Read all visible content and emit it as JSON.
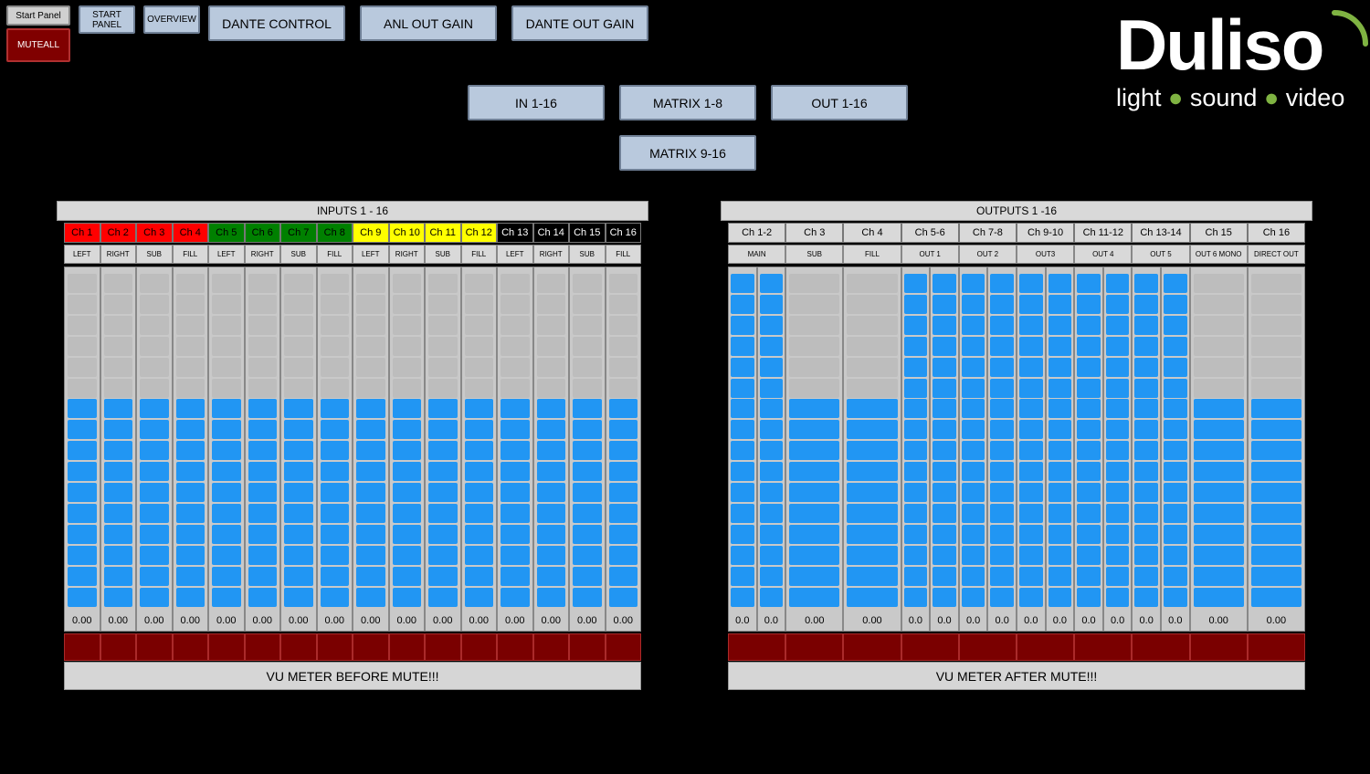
{
  "top": {
    "start_panel_small": "Start Panel",
    "mute_all": "MUTEALL",
    "start_panel": "START PANEL",
    "overview": "OVERVIEW",
    "dante_control": "DANTE CONTROL",
    "anl_out_gain": "ANL OUT GAIN",
    "dante_out_gain": "DANTE OUT GAIN"
  },
  "nav": {
    "in": "IN 1-16",
    "matrix_1_8": "MATRIX 1-8",
    "out": "OUT 1-16",
    "matrix_9_16": "MATRIX 9-16"
  },
  "logo": {
    "word": "Duliso",
    "tag_1": "light",
    "tag_2": "sound",
    "tag_3": "video",
    "accent_color": "#7fb342"
  },
  "colors": {
    "meter_on": "#2196f3",
    "meter_off": "#bdbdbd",
    "mute_red": "#7a0000",
    "button_blue": "#b9c9dd"
  },
  "inputs": {
    "title": "INPUTS 1 - 16",
    "footer": "VU METER BEFORE MUTE!!!",
    "channels": [
      {
        "label": "Ch 1",
        "sub": "LEFT",
        "value": "0.00",
        "bg": "#ff0000",
        "fg": "#000",
        "level": 10
      },
      {
        "label": "Ch 2",
        "sub": "RIGHT",
        "value": "0.00",
        "bg": "#ff0000",
        "fg": "#000",
        "level": 10
      },
      {
        "label": "Ch 3",
        "sub": "SUB",
        "value": "0.00",
        "bg": "#ff0000",
        "fg": "#000",
        "level": 10
      },
      {
        "label": "Ch 4",
        "sub": "FILL",
        "value": "0.00",
        "bg": "#ff0000",
        "fg": "#000",
        "level": 10
      },
      {
        "label": "Ch 5",
        "sub": "LEFT",
        "value": "0.00",
        "bg": "#008000",
        "fg": "#000",
        "level": 10
      },
      {
        "label": "Ch 6",
        "sub": "RIGHT",
        "value": "0.00",
        "bg": "#008000",
        "fg": "#000",
        "level": 10
      },
      {
        "label": "Ch 7",
        "sub": "SUB",
        "value": "0.00",
        "bg": "#008000",
        "fg": "#000",
        "level": 10
      },
      {
        "label": "Ch 8",
        "sub": "FILL",
        "value": "0.00",
        "bg": "#008000",
        "fg": "#000",
        "level": 10
      },
      {
        "label": "Ch 9",
        "sub": "LEFT",
        "value": "0.00",
        "bg": "#ffff00",
        "fg": "#000",
        "level": 10
      },
      {
        "label": "Ch 10",
        "sub": "RIGHT",
        "value": "0.00",
        "bg": "#ffff00",
        "fg": "#000",
        "level": 10
      },
      {
        "label": "Ch 11",
        "sub": "SUB",
        "value": "0.00",
        "bg": "#ffff00",
        "fg": "#000",
        "level": 10
      },
      {
        "label": "Ch 12",
        "sub": "FILL",
        "value": "0.00",
        "bg": "#ffff00",
        "fg": "#000",
        "level": 10
      },
      {
        "label": "Ch 13",
        "sub": "LEFT",
        "value": "0.00",
        "bg": "#000000",
        "fg": "#fff",
        "level": 10
      },
      {
        "label": "Ch 14",
        "sub": "RIGHT",
        "value": "0.00",
        "bg": "#000000",
        "fg": "#fff",
        "level": 10
      },
      {
        "label": "Ch 15",
        "sub": "SUB",
        "value": "0.00",
        "bg": "#000000",
        "fg": "#fff",
        "level": 10
      },
      {
        "label": "Ch 16",
        "sub": "FILL",
        "value": "0.00",
        "bg": "#000000",
        "fg": "#fff",
        "level": 10
      }
    ]
  },
  "outputs": {
    "title": "OUTPUTS 1 -16",
    "footer": "VU METER AFTER MUTE!!!",
    "groups": [
      {
        "label": "Ch 1-2",
        "sub": "MAIN",
        "stereo": true,
        "values": [
          "0.0",
          "0.0"
        ],
        "level": 16
      },
      {
        "label": "Ch 3",
        "sub": "SUB",
        "stereo": false,
        "values": [
          "0.00"
        ],
        "level": 10
      },
      {
        "label": "Ch 4",
        "sub": "FILL",
        "stereo": false,
        "values": [
          "0.00"
        ],
        "level": 10
      },
      {
        "label": "Ch 5-6",
        "sub": "OUT 1",
        "stereo": true,
        "values": [
          "0.0",
          "0.0"
        ],
        "level": 16
      },
      {
        "label": "Ch 7-8",
        "sub": "OUT 2",
        "stereo": true,
        "values": [
          "0.0",
          "0.0"
        ],
        "level": 16
      },
      {
        "label": "Ch 9-10",
        "sub": "OUT3",
        "stereo": true,
        "values": [
          "0.0",
          "0.0"
        ],
        "level": 16
      },
      {
        "label": "Ch 11-12",
        "sub": "OUT 4",
        "stereo": true,
        "values": [
          "0.0",
          "0.0"
        ],
        "level": 16
      },
      {
        "label": "Ch 13-14",
        "sub": "OUT 5",
        "stereo": true,
        "values": [
          "0.0",
          "0.0"
        ],
        "level": 16
      },
      {
        "label": "Ch 15",
        "sub": "OUT 6 MONO",
        "stereo": false,
        "values": [
          "0.00"
        ],
        "level": 10
      },
      {
        "label": "Ch 16",
        "sub": "DIRECT OUT",
        "stereo": false,
        "values": [
          "0.00"
        ],
        "level": 10
      }
    ]
  }
}
